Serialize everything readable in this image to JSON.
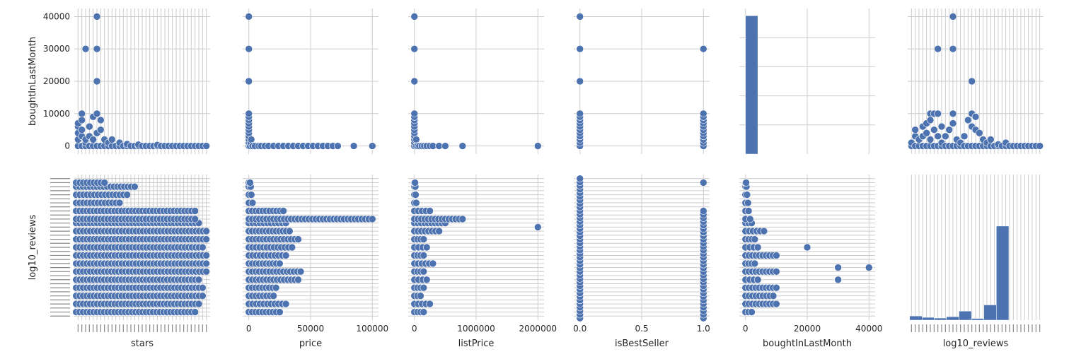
{
  "figure": {
    "kind": "seaborn pairplot"
  },
  "colors": {
    "marker": "#4c72b0",
    "marker_edge": "#ffffff",
    "grid": "#cccccc",
    "bg": "#ffffff",
    "text": "#262626",
    "dense_ticks": "#888888"
  },
  "chart_data": [
    {
      "type": "scatter",
      "name": "stars-vs-boughtInLastMonth",
      "xlabel": "",
      "ylabel": "boughtInLastMonth",
      "xlim": [
        0,
        36
      ],
      "ylim": [
        -2500,
        42500
      ],
      "yticks": [
        0,
        10000,
        20000,
        30000,
        40000
      ],
      "ytick_labels": [
        "0",
        "10000",
        "20000",
        "30000",
        "40000"
      ],
      "dense_x_ticks": 36,
      "x_ticks_numeric": false,
      "points": [
        [
          1,
          0
        ],
        [
          1,
          2000
        ],
        [
          1,
          4000
        ],
        [
          1,
          6000
        ],
        [
          1,
          7000
        ],
        [
          2,
          0
        ],
        [
          2,
          3000
        ],
        [
          2,
          5000
        ],
        [
          2,
          8000
        ],
        [
          2,
          10000
        ],
        [
          3,
          0
        ],
        [
          3,
          1000
        ],
        [
          3,
          30000
        ],
        [
          3,
          2000
        ],
        [
          4,
          0
        ],
        [
          4,
          3000
        ],
        [
          4,
          6000
        ],
        [
          5,
          0
        ],
        [
          5,
          2000
        ],
        [
          5,
          9000
        ],
        [
          6,
          0
        ],
        [
          6,
          10000
        ],
        [
          6,
          4000
        ],
        [
          6,
          30000
        ],
        [
          6,
          40000
        ],
        [
          6,
          20000
        ],
        [
          7,
          0
        ],
        [
          7,
          5000
        ],
        [
          7,
          8000
        ],
        [
          8,
          0
        ],
        [
          8,
          2000
        ],
        [
          9,
          0
        ],
        [
          9,
          1000
        ],
        [
          10,
          0
        ],
        [
          10,
          2000
        ],
        [
          11,
          0
        ],
        [
          12,
          0
        ],
        [
          12,
          1000
        ],
        [
          13,
          0
        ],
        [
          14,
          0
        ],
        [
          14,
          600
        ],
        [
          15,
          0
        ],
        [
          16,
          0
        ],
        [
          17,
          0
        ],
        [
          17,
          400
        ],
        [
          18,
          0
        ],
        [
          19,
          0
        ],
        [
          20,
          0
        ],
        [
          21,
          0
        ],
        [
          22,
          0
        ],
        [
          22,
          300
        ],
        [
          23,
          0
        ],
        [
          24,
          0
        ],
        [
          25,
          0
        ],
        [
          26,
          0
        ],
        [
          27,
          0
        ],
        [
          28,
          0
        ],
        [
          29,
          0
        ],
        [
          30,
          0
        ],
        [
          31,
          0
        ],
        [
          32,
          0
        ],
        [
          33,
          0
        ],
        [
          34,
          0
        ],
        [
          35,
          0
        ]
      ]
    },
    {
      "type": "scatter",
      "name": "price-vs-boughtInLastMonth",
      "xlabel": "",
      "ylabel": "",
      "xlim": [
        -5000,
        105000
      ],
      "ylim": [
        -2500,
        42500
      ],
      "xticks": [
        0,
        50000,
        100000
      ],
      "yticks": [
        0,
        10000,
        20000,
        30000,
        40000
      ],
      "points": [
        [
          0,
          0
        ],
        [
          0,
          1000
        ],
        [
          0,
          2000
        ],
        [
          0,
          3000
        ],
        [
          0,
          4000
        ],
        [
          0,
          5000
        ],
        [
          0,
          6000
        ],
        [
          0,
          7000
        ],
        [
          0,
          8000
        ],
        [
          0,
          9000
        ],
        [
          0,
          10000
        ],
        [
          0,
          20000
        ],
        [
          0,
          30000
        ],
        [
          0,
          40000
        ],
        [
          1000,
          0
        ],
        [
          1500,
          1000
        ],
        [
          2000,
          2000
        ],
        [
          3000,
          0
        ],
        [
          5000,
          0
        ],
        [
          8000,
          0
        ],
        [
          10000,
          0
        ],
        [
          13000,
          0
        ],
        [
          16000,
          0
        ],
        [
          20000,
          0
        ],
        [
          24000,
          0
        ],
        [
          28000,
          0
        ],
        [
          32000,
          0
        ],
        [
          36000,
          0
        ],
        [
          40000,
          0
        ],
        [
          44000,
          0
        ],
        [
          48000,
          0
        ],
        [
          52000,
          0
        ],
        [
          56000,
          0
        ],
        [
          60000,
          0
        ],
        [
          64000,
          0
        ],
        [
          68000,
          0
        ],
        [
          72000,
          0
        ],
        [
          85000,
          0
        ],
        [
          100000,
          0
        ]
      ]
    },
    {
      "type": "scatter",
      "name": "listPrice-vs-boughtInLastMonth",
      "xlabel": "",
      "ylabel": "",
      "xlim": [
        -100000,
        2100000
      ],
      "ylim": [
        -2500,
        42500
      ],
      "xticks": [
        0,
        1000000,
        2000000
      ],
      "yticks": [
        0,
        10000,
        20000,
        30000,
        40000
      ],
      "points": [
        [
          0,
          0
        ],
        [
          0,
          1000
        ],
        [
          0,
          2000
        ],
        [
          0,
          3000
        ],
        [
          0,
          4000
        ],
        [
          0,
          5000
        ],
        [
          0,
          6000
        ],
        [
          0,
          7000
        ],
        [
          0,
          8000
        ],
        [
          0,
          9000
        ],
        [
          0,
          10000
        ],
        [
          0,
          20000
        ],
        [
          0,
          30000
        ],
        [
          0,
          40000
        ],
        [
          30000,
          0
        ],
        [
          30000,
          2000
        ],
        [
          50000,
          0
        ],
        [
          80000,
          0
        ],
        [
          120000,
          0
        ],
        [
          160000,
          0
        ],
        [
          200000,
          0
        ],
        [
          250000,
          0
        ],
        [
          300000,
          0
        ],
        [
          400000,
          0
        ],
        [
          500000,
          0
        ],
        [
          780000,
          0
        ],
        [
          2000000,
          0
        ]
      ]
    },
    {
      "type": "scatter",
      "name": "isBestSeller-vs-boughtInLastMonth",
      "xlabel": "",
      "ylabel": "",
      "xlim": [
        -0.05,
        1.05
      ],
      "ylim": [
        -2500,
        42500
      ],
      "xticks": [
        0.0,
        0.5,
        1.0
      ],
      "yticks": [
        0,
        10000,
        20000,
        30000,
        40000
      ],
      "points": [
        [
          0,
          0
        ],
        [
          0,
          1000
        ],
        [
          0,
          2000
        ],
        [
          0,
          3000
        ],
        [
          0,
          4000
        ],
        [
          0,
          5000
        ],
        [
          0,
          6000
        ],
        [
          0,
          7000
        ],
        [
          0,
          8000
        ],
        [
          0,
          9000
        ],
        [
          0,
          10000
        ],
        [
          0,
          20000
        ],
        [
          0,
          30000
        ],
        [
          0,
          40000
        ],
        [
          1,
          0
        ],
        [
          1,
          1000
        ],
        [
          1,
          2000
        ],
        [
          1,
          3000
        ],
        [
          1,
          4000
        ],
        [
          1,
          5000
        ],
        [
          1,
          6000
        ],
        [
          1,
          7000
        ],
        [
          1,
          8000
        ],
        [
          1,
          9000
        ],
        [
          1,
          10000
        ],
        [
          1,
          30000
        ]
      ]
    },
    {
      "type": "histogram",
      "name": "boughtInLastMonth-hist",
      "xlabel": "",
      "ylabel": "",
      "xlim": [
        -2000,
        42000
      ],
      "xticks": [
        0,
        20000,
        40000
      ],
      "bins": [
        {
          "start": 0,
          "end": 4000,
          "height": 1.0
        }
      ]
    },
    {
      "type": "scatter",
      "name": "log10_reviews-vs-boughtInLastMonth",
      "xlabel": "",
      "ylabel": "",
      "xlim": [
        0,
        36
      ],
      "ylim": [
        -2500,
        42500
      ],
      "yticks": [
        0,
        10000,
        20000,
        30000,
        40000
      ],
      "dense_x_ticks": 36,
      "x_ticks_numeric": false,
      "points": [
        [
          1,
          0
        ],
        [
          1,
          1000
        ],
        [
          2,
          0
        ],
        [
          2,
          3000
        ],
        [
          2,
          5000
        ],
        [
          3,
          0
        ],
        [
          3,
          2000
        ],
        [
          4,
          0
        ],
        [
          4,
          6000
        ],
        [
          4,
          3000
        ],
        [
          5,
          0
        ],
        [
          5,
          4000
        ],
        [
          5,
          7000
        ],
        [
          6,
          0
        ],
        [
          6,
          10000
        ],
        [
          6,
          8000
        ],
        [
          6,
          2000
        ],
        [
          7,
          0
        ],
        [
          7,
          10000
        ],
        [
          7,
          5000
        ],
        [
          8,
          0
        ],
        [
          8,
          10000
        ],
        [
          8,
          30000
        ],
        [
          8,
          3000
        ],
        [
          9,
          0
        ],
        [
          9,
          6000
        ],
        [
          9,
          1000
        ],
        [
          10,
          0
        ],
        [
          10,
          3000
        ],
        [
          11,
          0
        ],
        [
          11,
          5000
        ],
        [
          12,
          0
        ],
        [
          12,
          40000
        ],
        [
          12,
          30000
        ],
        [
          12,
          10000
        ],
        [
          12,
          7000
        ],
        [
          13,
          0
        ],
        [
          13,
          2000
        ],
        [
          14,
          0
        ],
        [
          14,
          1000
        ],
        [
          15,
          0
        ],
        [
          15,
          3000
        ],
        [
          16,
          0
        ],
        [
          16,
          8000
        ],
        [
          17,
          0
        ],
        [
          17,
          20000
        ],
        [
          17,
          10000
        ],
        [
          17,
          6000
        ],
        [
          18,
          0
        ],
        [
          18,
          9000
        ],
        [
          18,
          5000
        ],
        [
          19,
          0
        ],
        [
          19,
          4000
        ],
        [
          20,
          0
        ],
        [
          20,
          2000
        ],
        [
          21,
          0
        ],
        [
          21,
          1000
        ],
        [
          22,
          0
        ],
        [
          22,
          2000
        ],
        [
          23,
          0
        ],
        [
          24,
          0
        ],
        [
          24,
          500
        ],
        [
          25,
          0
        ],
        [
          26,
          0
        ],
        [
          26,
          1000
        ],
        [
          27,
          0
        ],
        [
          28,
          0
        ],
        [
          29,
          0
        ],
        [
          30,
          0
        ],
        [
          31,
          0
        ],
        [
          32,
          0
        ],
        [
          33,
          0
        ],
        [
          34,
          0
        ],
        [
          35,
          0
        ]
      ]
    },
    {
      "type": "scatter",
      "name": "stars-vs-log10_reviews",
      "xlabel": "stars",
      "ylabel": "log10_reviews",
      "xlim": [
        0,
        36
      ],
      "ylim": [
        0,
        36
      ],
      "dense_x_ticks": 36,
      "dense_y_ticks": 36,
      "x_ticks_numeric": false,
      "row_ys": [
        2,
        4,
        6,
        8,
        10,
        12,
        14,
        16,
        18,
        20,
        22,
        24,
        25,
        27,
        29,
        31,
        33,
        34
      ],
      "row_extent": [
        32,
        33,
        34,
        34,
        33,
        35,
        35,
        35,
        34,
        35,
        35,
        33,
        32,
        32,
        12,
        14,
        16,
        8
      ]
    },
    {
      "type": "scatter",
      "name": "price-vs-log10_reviews",
      "xlabel": "price",
      "ylabel": "",
      "xlim": [
        -5000,
        105000
      ],
      "ylim": [
        0,
        36
      ],
      "xticks": [
        0,
        50000,
        100000
      ],
      "xtick_labels": [
        "0",
        "50000",
        "100000"
      ],
      "row_ys": [
        2,
        4,
        6,
        8,
        10,
        12,
        14,
        16,
        18,
        20,
        22,
        24,
        25,
        27,
        29,
        31,
        33,
        34
      ],
      "row_extent": [
        25000,
        30000,
        20000,
        22000,
        40000,
        42000,
        25000,
        30000,
        35000,
        40000,
        33000,
        30000,
        100000,
        28000,
        3000,
        2000,
        1500,
        1000
      ]
    },
    {
      "type": "scatter",
      "name": "listPrice-vs-log10_reviews",
      "xlabel": "listPrice",
      "ylabel": "",
      "xlim": [
        -100000,
        2100000
      ],
      "ylim": [
        0,
        36
      ],
      "xticks": [
        0,
        1000000,
        2000000
      ],
      "xtick_labels": [
        "0",
        "1000000",
        "2000000"
      ],
      "row_ys": [
        2,
        4,
        6,
        8,
        10,
        12,
        14,
        16,
        18,
        20,
        22,
        24,
        25,
        27,
        29,
        31,
        33,
        34
      ],
      "row_extent": [
        150000,
        250000,
        100000,
        150000,
        200000,
        150000,
        300000,
        150000,
        200000,
        150000,
        400000,
        500000,
        780000,
        250000,
        30000,
        20000,
        15000,
        10000
      ],
      "extra_points": [
        [
          2000000,
          23
        ]
      ]
    },
    {
      "type": "scatter",
      "name": "isBestSeller-vs-log10_reviews",
      "xlabel": "isBestSeller",
      "ylabel": "",
      "xlim": [
        -0.05,
        1.05
      ],
      "ylim": [
        0,
        36
      ],
      "xticks": [
        0.0,
        0.5,
        1.0
      ],
      "xtick_labels": [
        "0.0",
        "0.5",
        "1.0"
      ],
      "column_xs": [
        0,
        1
      ],
      "column_ranges": [
        [
          0.5,
          35
        ],
        [
          0.5,
          27
        ]
      ],
      "extra_points": [
        [
          1,
          34
        ]
      ]
    },
    {
      "type": "scatter",
      "name": "boughtInLastMonth-vs-log10_reviews",
      "xlabel": "boughtInLastMonth",
      "ylabel": "",
      "xlim": [
        -2000,
        42000
      ],
      "ylim": [
        0,
        36
      ],
      "xticks": [
        0,
        20000,
        40000
      ],
      "xtick_labels": [
        "0",
        "20000",
        "40000"
      ],
      "row_ys": [
        2,
        4,
        6,
        8,
        10,
        12,
        14,
        16,
        18,
        20,
        22,
        24,
        25,
        27,
        29,
        31,
        33,
        34
      ],
      "row_extent": [
        2000,
        10000,
        9000,
        10000,
        4000,
        10000,
        3000,
        10000,
        4000,
        3000,
        6000,
        2000,
        1500,
        1000,
        800,
        500,
        300,
        200
      ],
      "extra_points": [
        [
          20000,
          18
        ],
        [
          30000,
          10
        ],
        [
          30000,
          13
        ],
        [
          40000,
          13
        ]
      ]
    },
    {
      "type": "histogram",
      "name": "log10_reviews-hist",
      "xlabel": "log10_reviews",
      "ylabel": "",
      "xlim": [
        0,
        36
      ],
      "dense_x_ticks": 36,
      "x_ticks_numeric": false,
      "bins": [
        {
          "start": 0.5,
          "end": 3.8,
          "height": 0.03
        },
        {
          "start": 3.8,
          "end": 7.0,
          "height": 0.02
        },
        {
          "start": 7.0,
          "end": 10.3,
          "height": 0.015
        },
        {
          "start": 10.3,
          "end": 13.6,
          "height": 0.025
        },
        {
          "start": 13.6,
          "end": 16.9,
          "height": 0.065
        },
        {
          "start": 16.9,
          "end": 20.2,
          "height": 0.012
        },
        {
          "start": 20.2,
          "end": 23.5,
          "height": 0.11
        },
        {
          "start": 23.5,
          "end": 26.8,
          "height": 0.68
        },
        {
          "start": 26.8,
          "end": 30.1,
          "height": 0.0
        },
        {
          "start": 30.1,
          "end": 33.4,
          "height": 0.0
        }
      ]
    }
  ]
}
